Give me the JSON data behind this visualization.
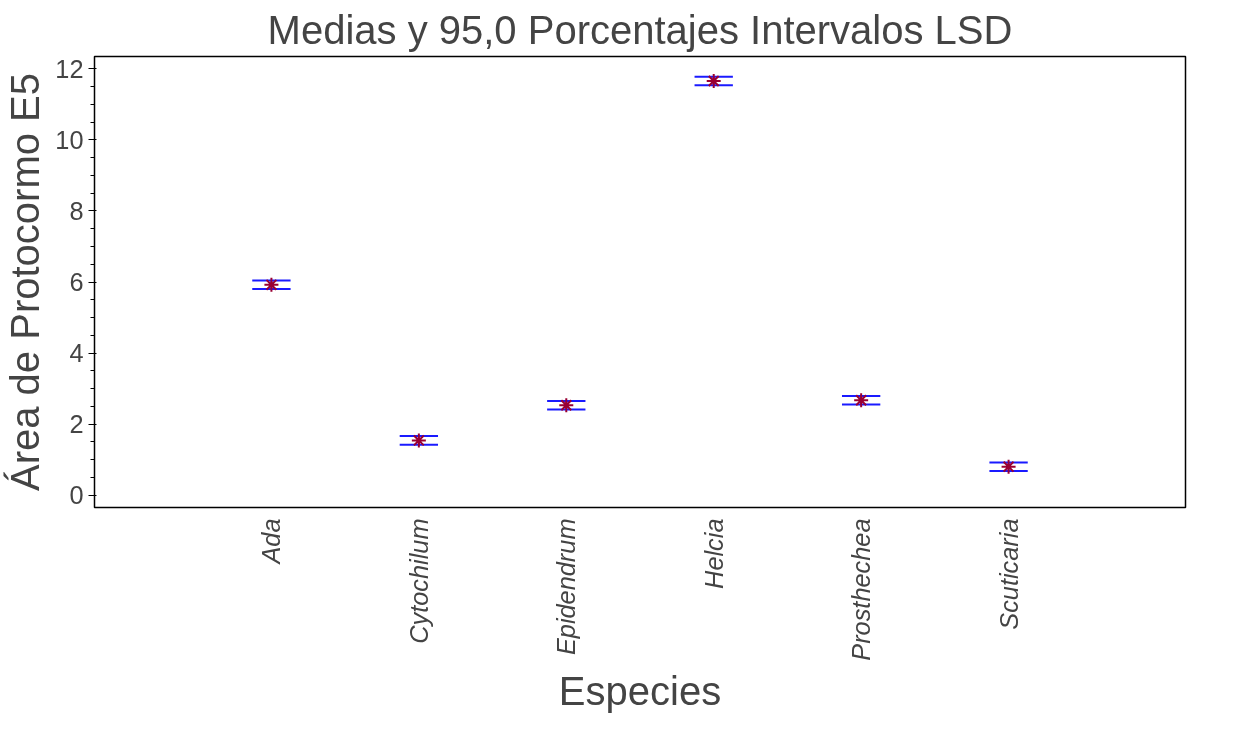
{
  "chart_data": {
    "type": "scatter",
    "title": "Medias y 95,0 Porcentajes Intervalos LSD",
    "xlabel": "Especies",
    "ylabel": "Área de Protocormo E5",
    "categories": [
      "Ada",
      "Cytochilum",
      "Epidendrum",
      "Helcia",
      "Prosthechea",
      "Scuticaria"
    ],
    "series": [
      {
        "color": "#990033",
        "values": [
          5.92,
          1.54,
          2.53,
          11.66,
          2.67,
          0.8
        ],
        "errors": [
          0.12,
          0.12,
          0.12,
          0.12,
          0.12,
          0.12
        ]
      }
    ],
    "ylim": [
      -0.35,
      12.35
    ],
    "yticks": [
      0,
      2,
      4,
      6,
      8,
      10,
      12
    ],
    "grid": false,
    "marker": "cross"
  }
}
